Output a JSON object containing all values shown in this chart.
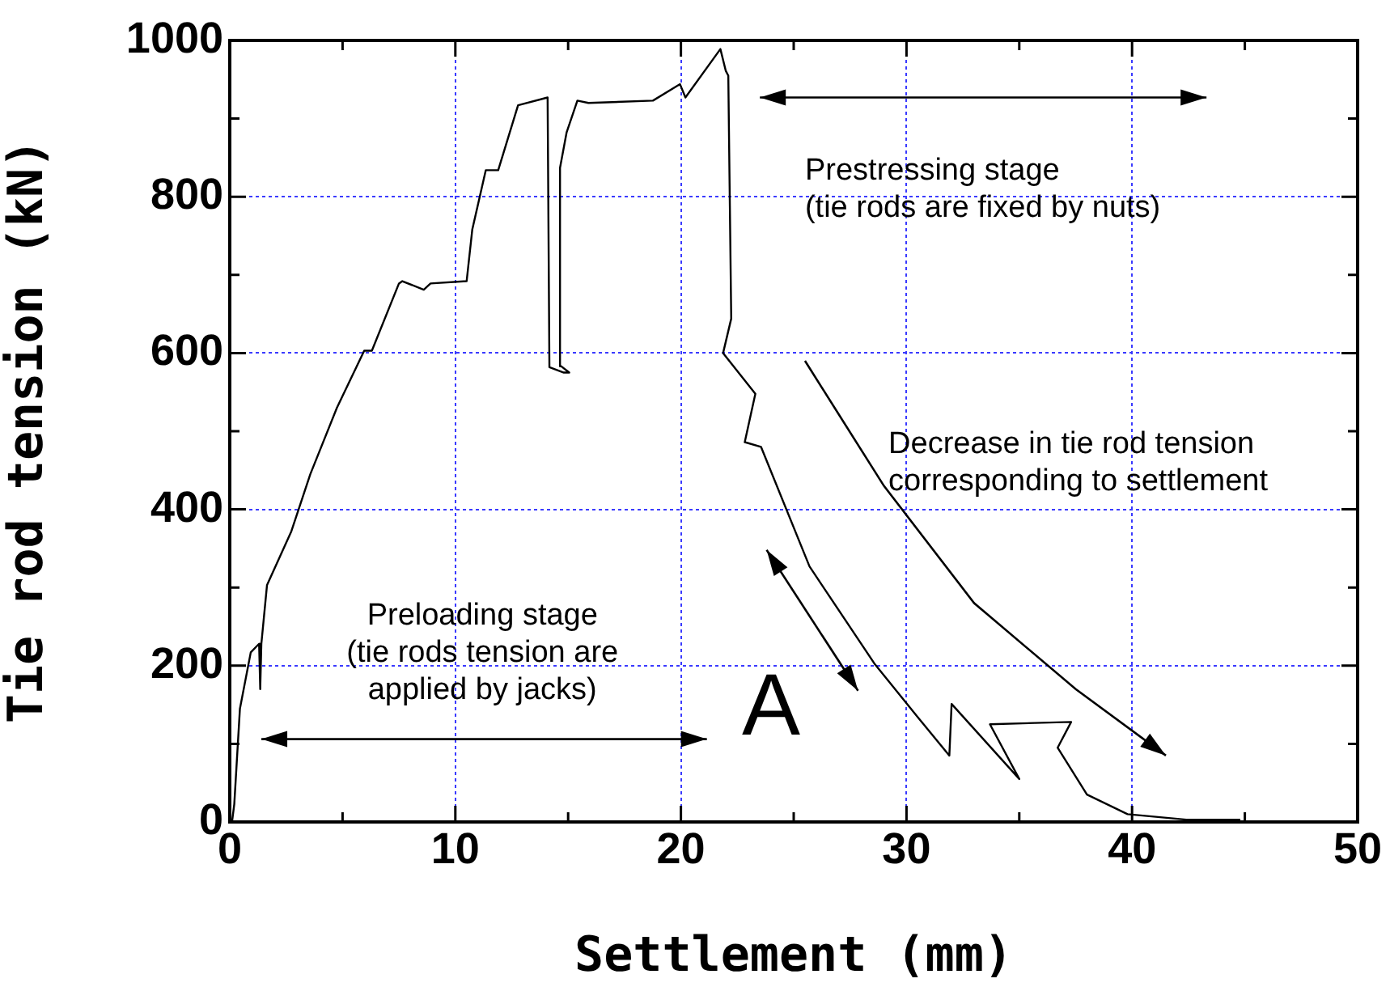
{
  "chart_data": {
    "type": "line",
    "xlabel": "Settlement (mm)",
    "ylabel": "Tie rod tension (kN)",
    "xlim": [
      0,
      50
    ],
    "xticks": [
      0,
      {
        "value": 5,
        "label": null
      },
      10,
      {
        "value": 15,
        "label": null
      },
      20,
      {
        "value": 25,
        "label": null
      },
      30,
      {
        "value": 35,
        "label": null
      },
      40,
      {
        "value": 45,
        "label": null
      },
      50
    ],
    "ylim": [
      0,
      1000
    ],
    "yticks": [
      0,
      {
        "value": 100,
        "label": null
      },
      200,
      {
        "value": 300,
        "label": null
      },
      400,
      {
        "value": 500,
        "label": null
      },
      600,
      {
        "value": 700,
        "label": null
      },
      800,
      {
        "value": 900,
        "label": null
      },
      1000
    ],
    "grid": true,
    "legend": false,
    "marker": "none",
    "line_style": "solid",
    "series": [
      {
        "color": "#000000",
        "x": [
          0.1,
          0.2,
          0.45,
          0.93,
          1.3,
          1.35,
          1.4,
          1.65,
          2.73,
          3.57,
          4.75,
          5.96,
          6.3,
          7.5,
          7.65,
          8.6,
          8.9,
          10.5,
          10.75,
          11.35,
          11.9,
          12.78,
          14.09,
          14.17,
          14.81,
          15.05,
          14.7,
          14.64,
          14.93,
          15.41,
          15.9,
          18.76,
          19.96,
          20.2,
          21.75,
          21.99,
          22.1,
          22.23,
          21.87,
          23.3,
          22.83,
          23.55,
          25.7,
          28.57,
          30.5,
          31.9,
          32.0,
          35.0,
          33.7,
          37.3,
          36.7,
          38.0,
          39.8,
          42.4,
          44.8
        ],
        "values": [
          0,
          23,
          145,
          217,
          228,
          170,
          228,
          303,
          372,
          445,
          530,
          603,
          603,
          689,
          692,
          681,
          689,
          692,
          758,
          834,
          834,
          917,
          927,
          582,
          575,
          575,
          583,
          837,
          882,
          923,
          920,
          923,
          944,
          927,
          989,
          961,
          955,
          644,
          600,
          548,
          486,
          480,
          327,
          203,
          134,
          85,
          151,
          55,
          125,
          128,
          95,
          35,
          10,
          3,
          3
        ]
      }
    ],
    "annotations": [
      "Preloading stage\n(tie rods tension are\napplied by jacks)",
      "Prestressing stage\n(tie rods are fixed by nuts)",
      "Decrease in tie rod tension\ncorresponding to settlement",
      "A"
    ]
  }
}
